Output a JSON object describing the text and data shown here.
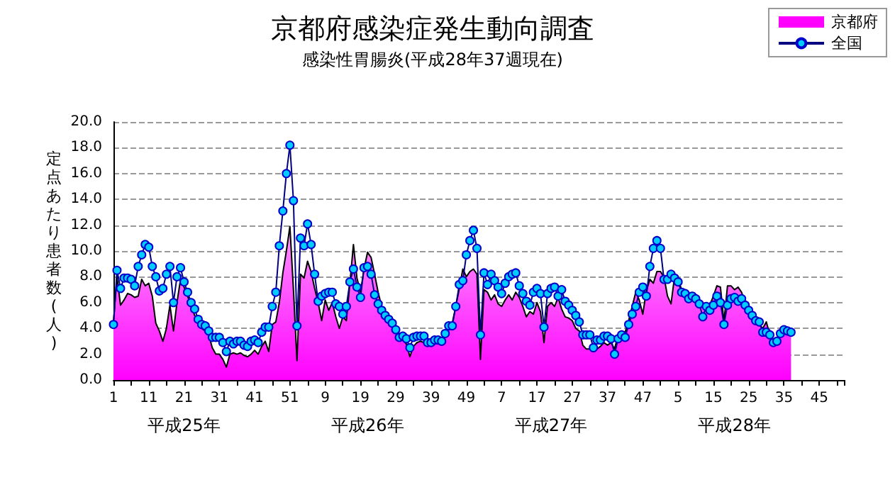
{
  "chart_data": {
    "type": "area",
    "title": "京都府感染症発生動向調査",
    "subtitle": "感染性胃腸炎(平成28年37週現在)",
    "ylabel": "定点あたり患者数(人)",
    "annotations": [
      "平成25年",
      "平成26年",
      "平成27年",
      "平成28年"
    ],
    "categories": [
      "1",
      null,
      null,
      null,
      null,
      null,
      null,
      null,
      null,
      null,
      "11",
      null,
      null,
      null,
      null,
      null,
      null,
      null,
      null,
      null,
      "21",
      null,
      null,
      null,
      null,
      null,
      null,
      null,
      null,
      null,
      "31",
      null,
      null,
      null,
      null,
      null,
      null,
      null,
      null,
      null,
      "41",
      null,
      null,
      null,
      null,
      null,
      null,
      null,
      null,
      null,
      "51",
      null,
      null,
      null,
      null,
      null,
      null,
      null,
      null,
      null,
      "9",
      null,
      null,
      null,
      null,
      null,
      null,
      null,
      null,
      null,
      "19",
      null,
      null,
      null,
      null,
      null,
      null,
      null,
      null,
      null,
      "29",
      null,
      null,
      null,
      null,
      null,
      null,
      null,
      null,
      null,
      "39",
      null,
      null,
      null,
      null,
      null,
      null,
      null,
      null,
      null,
      "49",
      null,
      null,
      null,
      null,
      null,
      null,
      null,
      null,
      null,
      "7",
      null,
      null,
      null,
      null,
      null,
      null,
      null,
      null,
      null,
      "17",
      null,
      null,
      null,
      null,
      null,
      null,
      null,
      null,
      null,
      "27",
      null,
      null,
      null,
      null,
      null,
      null,
      null,
      null,
      null,
      "37",
      null,
      null,
      null,
      null,
      null,
      null,
      null,
      null,
      null,
      "47",
      null,
      null,
      null,
      null,
      null,
      null,
      null,
      null,
      null,
      "5",
      null,
      null,
      null,
      null,
      null,
      null,
      null,
      null,
      null,
      "15",
      null,
      null,
      null,
      null,
      null,
      null,
      null,
      null,
      null,
      "25",
      null,
      null,
      null,
      null,
      null,
      null,
      null,
      null,
      null,
      "35",
      null,
      null,
      null,
      null,
      null,
      null,
      null,
      null,
      null,
      "45",
      null,
      null,
      null,
      null,
      null,
      null,
      null
    ],
    "series": [
      {
        "name": "京都府",
        "color": "#ff00ff",
        "values": [
          4.5,
          8.0,
          5.8,
          6.2,
          6.7,
          6.6,
          6.4,
          6.5,
          7.8,
          7.3,
          7.5,
          6.5,
          4.4,
          3.8,
          3.0,
          4.0,
          5.8,
          3.8,
          6.0,
          7.8,
          7.2,
          6.5,
          5.8,
          5.0,
          4.5,
          4.0,
          3.8,
          3.5,
          2.5,
          2.0,
          2.0,
          1.6,
          1.0,
          2.0,
          2.1,
          2.0,
          2.1,
          1.9,
          1.8,
          2.0,
          2.3,
          2.0,
          2.6,
          3.0,
          2.2,
          4.3,
          4.5,
          6.0,
          8.3,
          10.0,
          11.9,
          7.0,
          1.5,
          8.2,
          7.9,
          9.2,
          8.4,
          7.1,
          6.0,
          4.6,
          6.2,
          5.4,
          6.0,
          4.9,
          4.0,
          4.9,
          4.6,
          7.5,
          10.5,
          7.9,
          6.8,
          8.6,
          9.9,
          9.5,
          8.2,
          6.8,
          5.7,
          5.1,
          4.8,
          4.4,
          3.7,
          3.3,
          3.1,
          2.8,
          1.8,
          2.6,
          2.9,
          3.0,
          2.9,
          2.9,
          2.7,
          2.9,
          2.9,
          2.9,
          3.5,
          3.9,
          4.4,
          5.7,
          7.1,
          8.6,
          8.0,
          8.4,
          8.6,
          8.2,
          1.6,
          7.0,
          6.8,
          6.2,
          6.6,
          5.9,
          5.7,
          6.2,
          6.6,
          6.2,
          6.8,
          6.4,
          5.7,
          4.9,
          5.3,
          5.1,
          6.0,
          5.3,
          2.9,
          5.7,
          6.0,
          5.7,
          6.4,
          5.5,
          4.9,
          4.8,
          4.6,
          4.0,
          3.8,
          2.7,
          2.4,
          2.4,
          2.6,
          2.4,
          2.6,
          2.9,
          2.7,
          2.9,
          2.4,
          3.5,
          3.8,
          3.7,
          4.6,
          5.7,
          6.8,
          6.2,
          5.1,
          6.9,
          7.8,
          7.5,
          8.4,
          8.4,
          8.0,
          6.5,
          5.9,
          8.0,
          7.8,
          7.0,
          6.8,
          6.5,
          6.2,
          6.0,
          5.8,
          5.6,
          5.5,
          5.8,
          6.5,
          7.3,
          7.2,
          4.5,
          7.3,
          7.3,
          7.0,
          7.2,
          6.8,
          6.0,
          5.5,
          5.0,
          4.7,
          4.3,
          4.0,
          4.5,
          3.5,
          2.8,
          3.0,
          3.5,
          4.0,
          3.9,
          3.5,
          null,
          null,
          null,
          null,
          null,
          null,
          null,
          null,
          null,
          null,
          null,
          null,
          null,
          null,
          null
        ]
      },
      {
        "name": "全国",
        "type": "line",
        "color": "#00ccff",
        "marker": "circle",
        "values": [
          4.3,
          8.5,
          7.1,
          7.9,
          7.9,
          7.8,
          7.3,
          8.8,
          9.7,
          10.5,
          10.3,
          8.8,
          8.0,
          6.9,
          7.1,
          8.2,
          8.8,
          6.0,
          8.0,
          8.7,
          7.6,
          6.8,
          6.0,
          5.5,
          4.7,
          4.3,
          4.2,
          3.8,
          3.3,
          3.3,
          3.3,
          2.9,
          2.2,
          3.0,
          2.8,
          3.0,
          3.0,
          2.7,
          2.6,
          3.0,
          3.1,
          2.9,
          3.7,
          4.1,
          4.1,
          5.7,
          6.8,
          10.4,
          13.1,
          16.0,
          18.2,
          13.9,
          4.2,
          11.0,
          10.4,
          12.1,
          10.5,
          8.2,
          6.1,
          6.5,
          6.7,
          6.8,
          6.8,
          5.9,
          5.7,
          5.1,
          5.7,
          7.6,
          8.6,
          7.2,
          6.4,
          8.7,
          8.8,
          8.2,
          6.6,
          5.9,
          5.4,
          5.0,
          4.7,
          4.4,
          3.9,
          3.3,
          3.4,
          3.2,
          2.5,
          3.3,
          3.4,
          3.4,
          3.4,
          2.9,
          2.9,
          3.1,
          3.1,
          3.0,
          3.6,
          4.2,
          4.2,
          5.7,
          7.4,
          7.7,
          9.7,
          10.8,
          11.6,
          10.2,
          3.5,
          8.3,
          7.4,
          8.2,
          7.7,
          7.2,
          6.7,
          7.5,
          8.0,
          8.2,
          8.3,
          7.3,
          6.7,
          6.1,
          5.8,
          6.8,
          7.1,
          6.7,
          4.1,
          6.7,
          7.1,
          7.2,
          6.5,
          7.0,
          6.1,
          5.8,
          5.4,
          5.0,
          4.5,
          3.5,
          3.5,
          3.5,
          2.5,
          3.1,
          3.1,
          3.4,
          3.4,
          3.2,
          2.0,
          3.2,
          3.5,
          3.3,
          4.3,
          5.1,
          5.7,
          6.8,
          7.2,
          6.5,
          8.8,
          10.2,
          10.8,
          10.2,
          7.8,
          7.8,
          8.2,
          7.9,
          7.6,
          6.8,
          6.7,
          6.3,
          6.5,
          6.3,
          5.9,
          4.9,
          5.7,
          5.4,
          5.8,
          6.5,
          6.0,
          4.3,
          5.8,
          6.3,
          6.4,
          6.1,
          6.3,
          5.8,
          5.4,
          5.0,
          4.6,
          4.5,
          3.7,
          3.7,
          3.5,
          2.9,
          3.0,
          3.6,
          3.9,
          3.8,
          3.7,
          null,
          null,
          null,
          null,
          null,
          null,
          null,
          null,
          null,
          null,
          null,
          null,
          null,
          null,
          null
        ]
      }
    ],
    "ylim": [
      0,
      20
    ],
    "yticks": [
      {
        "value": 0,
        "label": "0.0"
      },
      {
        "value": 2,
        "label": "2.0"
      },
      {
        "value": 4,
        "label": "4.0"
      },
      {
        "value": 6,
        "label": "6.0"
      },
      {
        "value": 8,
        "label": "8.0"
      },
      {
        "value": 10,
        "label": "10.0"
      },
      {
        "value": 12,
        "label": "12.0"
      },
      {
        "value": 14,
        "label": "14.0"
      },
      {
        "value": 16,
        "label": "16.0"
      },
      {
        "value": 18,
        "label": "18.0"
      },
      {
        "value": 20,
        "label": "20.0"
      }
    ],
    "grid": "y",
    "legend": "top right"
  }
}
